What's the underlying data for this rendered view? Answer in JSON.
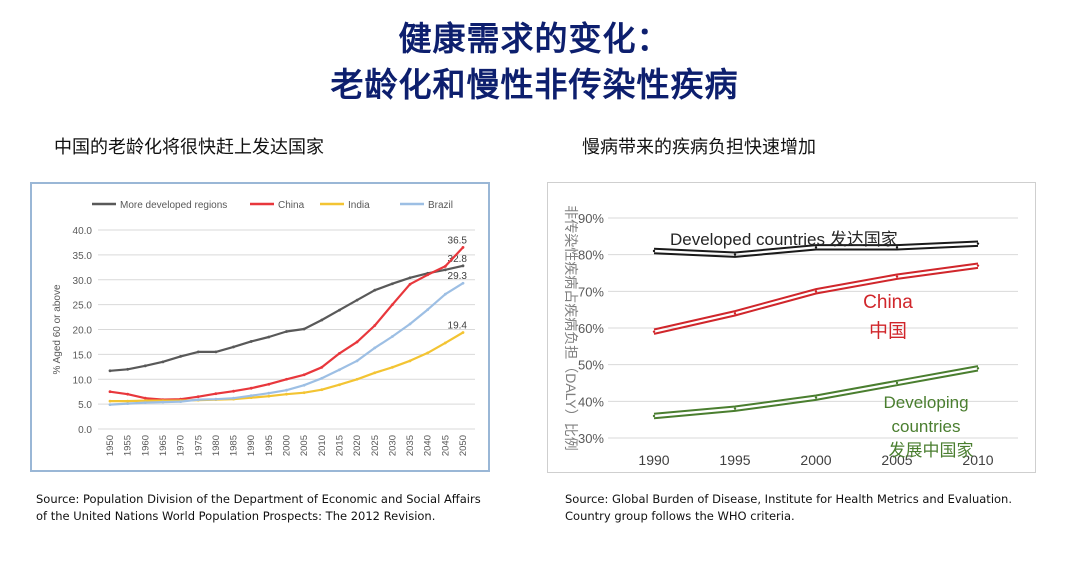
{
  "header": {
    "title_line1": "健康需求的变化：",
    "title_line2": "老龄化和慢性非传染性疾病"
  },
  "left": {
    "subtitle": "中国的老龄化将很快赶上发达国家",
    "source_line1": "Source: Population Division of the Department of Economic and Social Affairs",
    "source_line2": "of the United Nations World Population Prospects: The 2012 Revision."
  },
  "right": {
    "subtitle": "慢病带来的疾病负担快速增加",
    "source_line1": "Source: Global Burden of Disease, Institute for Health Metrics and Evaluation.",
    "source_line2": "Country group follows the WHO criteria."
  },
  "chart_data": [
    {
      "type": "line",
      "ylabel": "% Aged 60 or above",
      "ylim": [
        0,
        40
      ],
      "yticks": [
        "0.0",
        "5.0",
        "10.0",
        "15.0",
        "20.0",
        "25.0",
        "30.0",
        "35.0",
        "40.0"
      ],
      "x": [
        "1950",
        "1955",
        "1960",
        "1965",
        "1970",
        "1975",
        "1980",
        "1985",
        "1990",
        "1995",
        "2000",
        "2005",
        "2010",
        "2015",
        "2020",
        "2025",
        "2030",
        "2035",
        "2040",
        "2045",
        "2050"
      ],
      "legend_position": "top",
      "grid": true,
      "series": [
        {
          "name": "More developed regions",
          "color": "#595959",
          "values": [
            11.7,
            12.0,
            12.7,
            13.5,
            14.6,
            15.5,
            15.5,
            16.5,
            17.6,
            18.5,
            19.6,
            20.1,
            21.9,
            23.9,
            25.9,
            27.9,
            29.2,
            30.4,
            31.3,
            32.0,
            32.8
          ],
          "end_label": "32.8"
        },
        {
          "name": "China",
          "color": "#e8373c",
          "values": [
            7.5,
            7.0,
            6.2,
            5.9,
            6.0,
            6.5,
            7.1,
            7.6,
            8.2,
            9.0,
            10.0,
            10.9,
            12.4,
            15.2,
            17.5,
            20.8,
            25.0,
            29.1,
            31.0,
            32.7,
            36.5
          ],
          "end_label": "36.5"
        },
        {
          "name": "India",
          "color": "#f3c433",
          "values": [
            5.6,
            5.6,
            5.7,
            5.7,
            5.7,
            5.8,
            5.9,
            6.0,
            6.3,
            6.6,
            7.0,
            7.3,
            7.9,
            8.9,
            10.0,
            11.3,
            12.4,
            13.7,
            15.3,
            17.3,
            19.4
          ],
          "end_label": "19.4"
        },
        {
          "name": "Brazil",
          "color": "#9dbfe4",
          "values": [
            4.9,
            5.1,
            5.3,
            5.4,
            5.5,
            5.9,
            6.0,
            6.2,
            6.7,
            7.2,
            7.8,
            8.8,
            10.2,
            11.9,
            13.7,
            16.3,
            18.6,
            21.1,
            24.0,
            27.1,
            29.3
          ],
          "end_label": "29.3"
        }
      ]
    },
    {
      "type": "line",
      "ylabel": "非传染性疾病占疾病负担（DALY）比例",
      "ylim": [
        30,
        90
      ],
      "yticks": [
        "30%",
        "40%",
        "50%",
        "60%",
        "70%",
        "80%",
        "90%"
      ],
      "x": [
        "1990",
        "1995",
        "2000",
        "2005",
        "2010"
      ],
      "grid": true,
      "series": [
        {
          "name": "Developed countries",
          "label_cn": "发达国家",
          "color": "#1a1a1a",
          "values": [
            81,
            80,
            82,
            82,
            83
          ]
        },
        {
          "name": "China",
          "label_cn": "中国",
          "color": "#d0262b",
          "values": [
            59,
            64,
            70,
            74,
            77
          ]
        },
        {
          "name": "Developing countries",
          "label_cn": "发展中国家",
          "color": "#4a7e2f",
          "values": [
            36,
            38,
            41,
            45,
            49
          ]
        }
      ],
      "labels": {
        "developed": "Developed countries 发达国家",
        "china_en": "China",
        "china_cn": "中国",
        "developing_en1": "Developing",
        "developing_en2": "countries",
        "developing_cn": "发展中国家"
      }
    }
  ]
}
